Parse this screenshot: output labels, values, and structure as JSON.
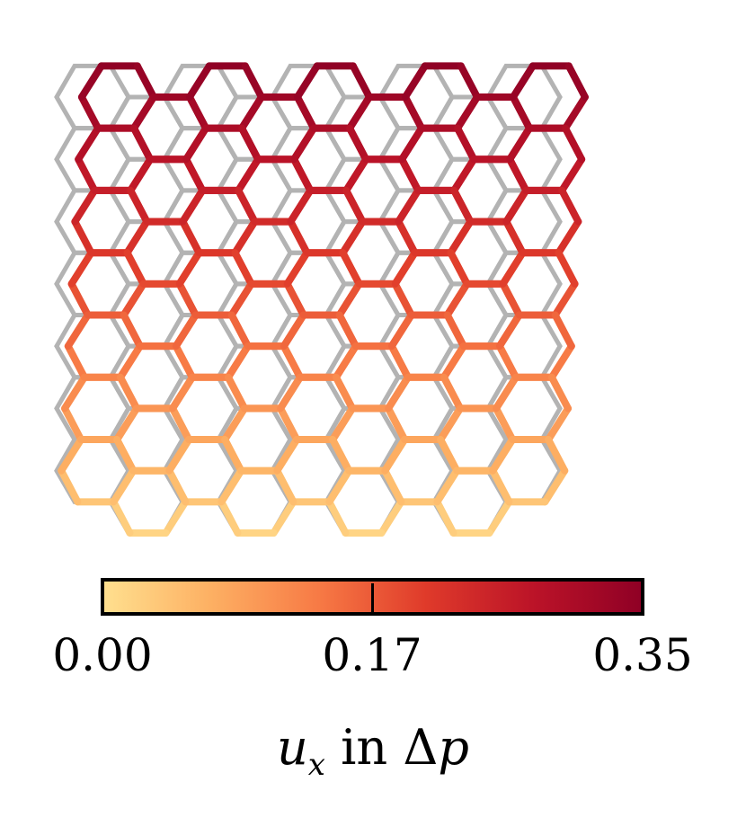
{
  "colorbar": {
    "ticks": [
      "0.00",
      "0.17",
      "0.35"
    ],
    "title_var": "u",
    "title_sub": "x",
    "title_in": "in",
    "title_delta": "Δ",
    "title_p": "p",
    "colors": [
      "#ffe08f",
      "#fdb063",
      "#f77a45",
      "#df3a2a",
      "#bb1328",
      "#8f0025"
    ]
  },
  "lattice": {
    "rows": 7,
    "columns": 9,
    "reference_color": "#b3b3b3",
    "max_displacement": 0.35
  }
}
